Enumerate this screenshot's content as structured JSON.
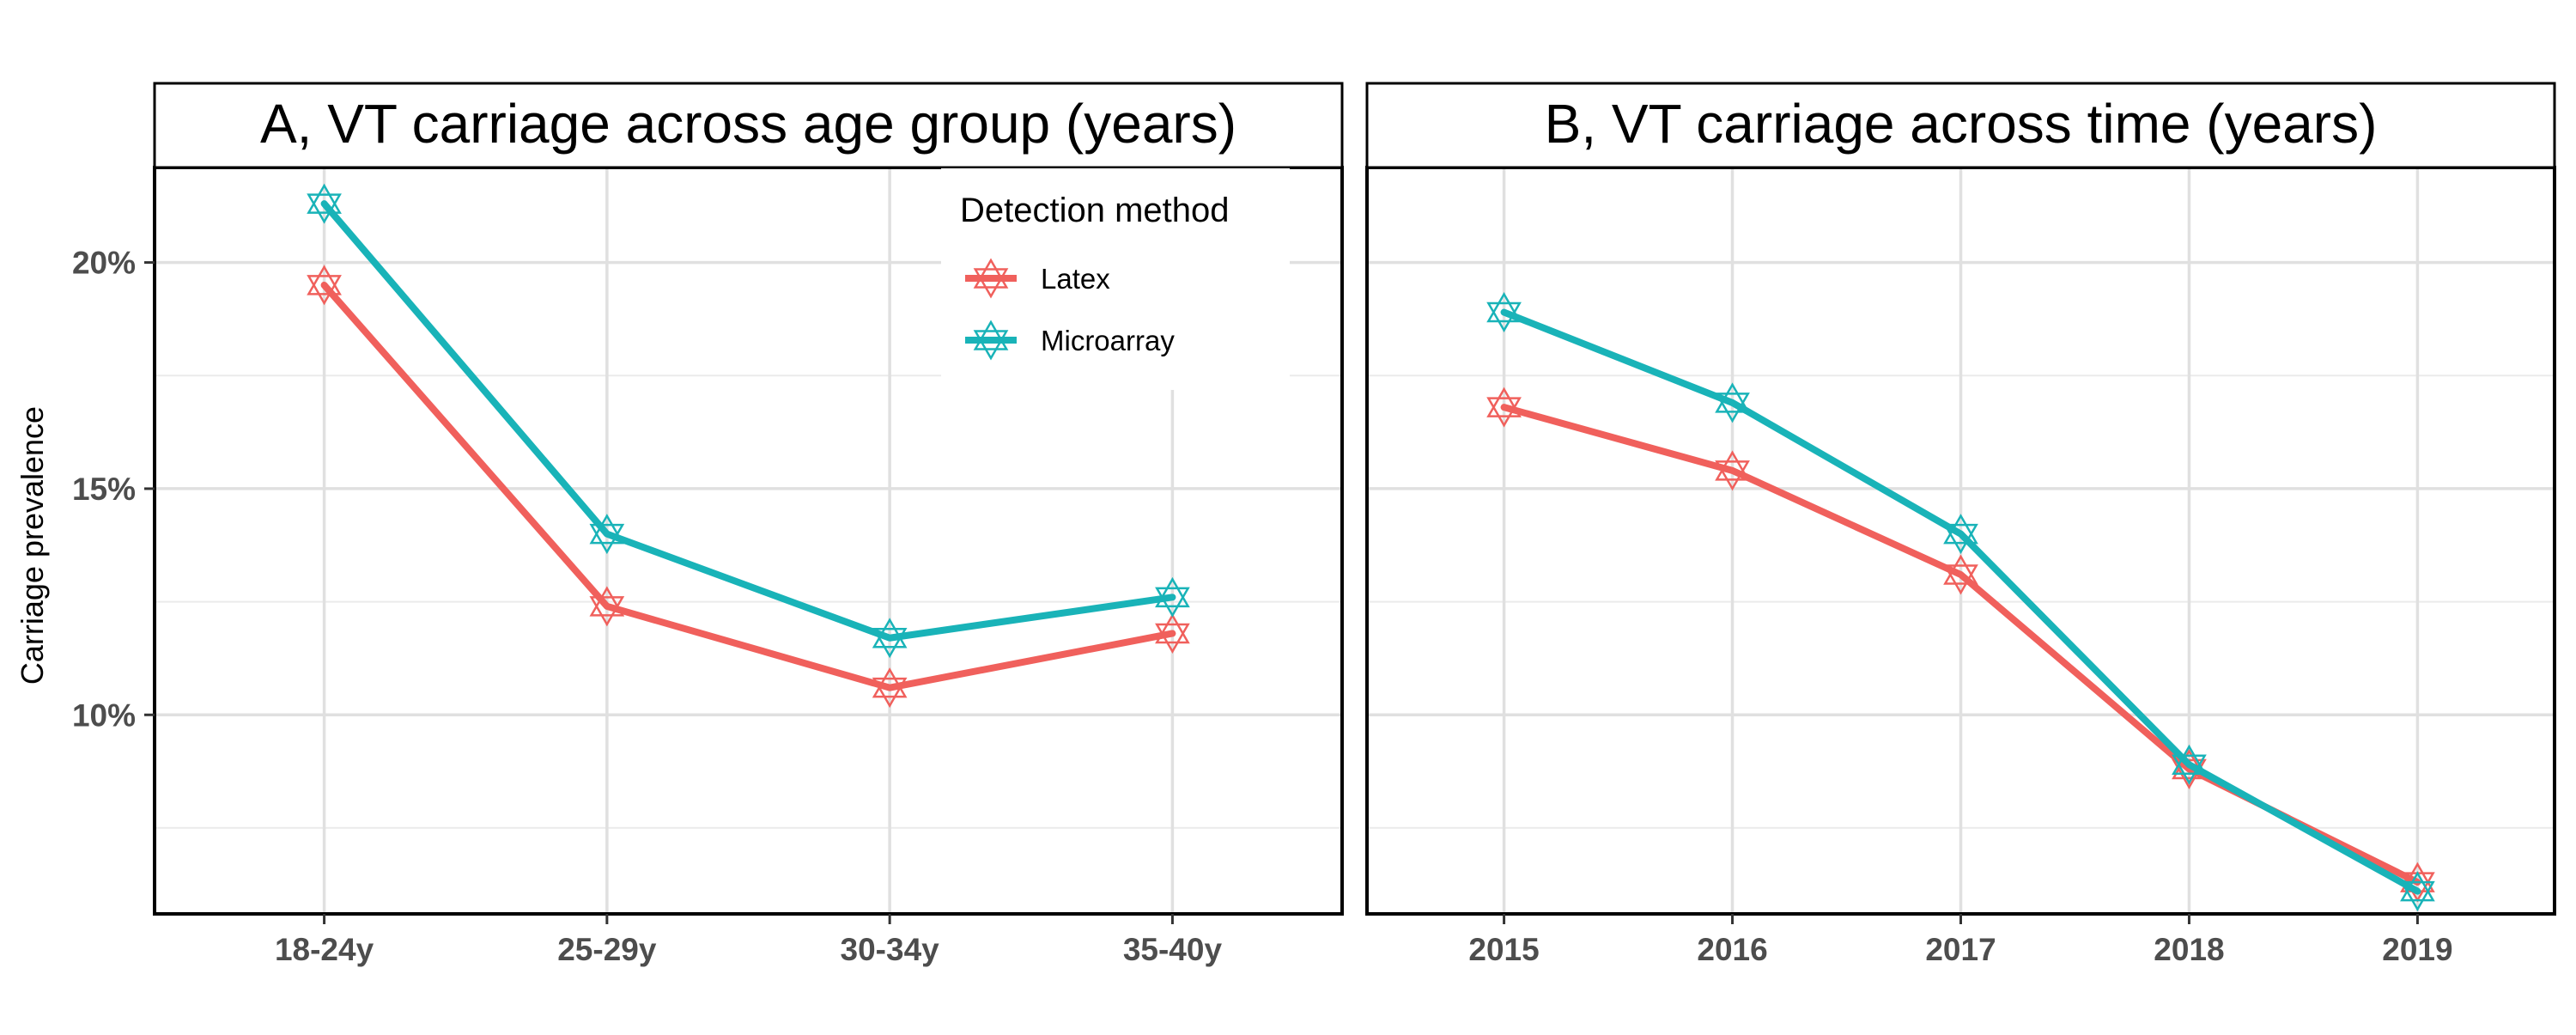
{
  "figure": {
    "ylabel": "Carriage prevalence",
    "legend": {
      "title": "Detection method",
      "placement": "top-right of panel A",
      "items": [
        "Latex",
        "Microarray"
      ]
    },
    "colors": {
      "Latex": "#F0605C",
      "Microarray": "#19B3B8"
    }
  },
  "chart_data": [
    {
      "type": "line",
      "title": "A, VT carriage across age group (years)",
      "xlabel": "",
      "ylabel": "Carriage prevalence",
      "categories": [
        "18-24y",
        "25-29y",
        "30-34y",
        "35-40y"
      ],
      "y_ticks": [
        "10%",
        "15%",
        "20%"
      ],
      "ylim": [
        5.6,
        22.1
      ],
      "grid": true,
      "marker": "hexagram",
      "series": [
        {
          "name": "Latex",
          "values": [
            19.5,
            12.4,
            10.6,
            11.8
          ]
        },
        {
          "name": "Microarray",
          "values": [
            21.3,
            14.0,
            11.7,
            12.6
          ]
        }
      ]
    },
    {
      "type": "line",
      "title": "B, VT carriage across time (years)",
      "xlabel": "",
      "ylabel": "",
      "categories": [
        "2015",
        "2016",
        "2017",
        "2018",
        "2019"
      ],
      "ylim": [
        5.6,
        22.1
      ],
      "grid": true,
      "marker": "hexagram",
      "series": [
        {
          "name": "Latex",
          "values": [
            16.8,
            15.4,
            13.1,
            8.8,
            6.3
          ]
        },
        {
          "name": "Microarray",
          "values": [
            18.9,
            16.9,
            14.0,
            8.9,
            6.1
          ]
        }
      ]
    }
  ]
}
